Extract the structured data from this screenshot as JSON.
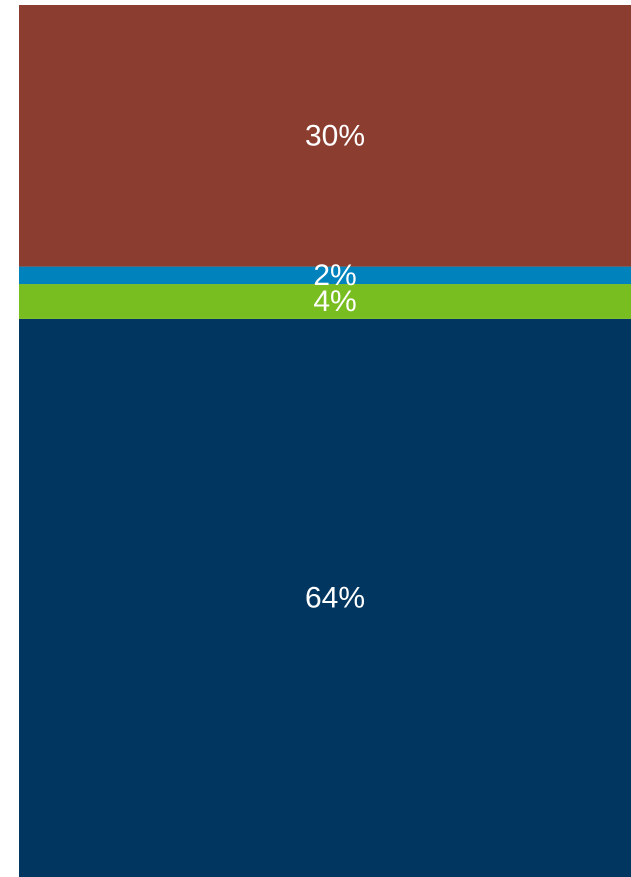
{
  "chart_data": {
    "type": "bar",
    "stacked": true,
    "title": "",
    "xlabel": "",
    "ylabel": "",
    "ylim": [
      0,
      100
    ],
    "grid": false,
    "legend": "none",
    "series": [
      {
        "value": 64,
        "label": "64%",
        "color": "#003660"
      },
      {
        "value": 4,
        "label": "4%",
        "color": "#78be20"
      },
      {
        "value": 2,
        "label": "2%",
        "color": "#0082bd"
      },
      {
        "value": 30,
        "label": "30%",
        "color": "#8b3e2f"
      }
    ]
  }
}
